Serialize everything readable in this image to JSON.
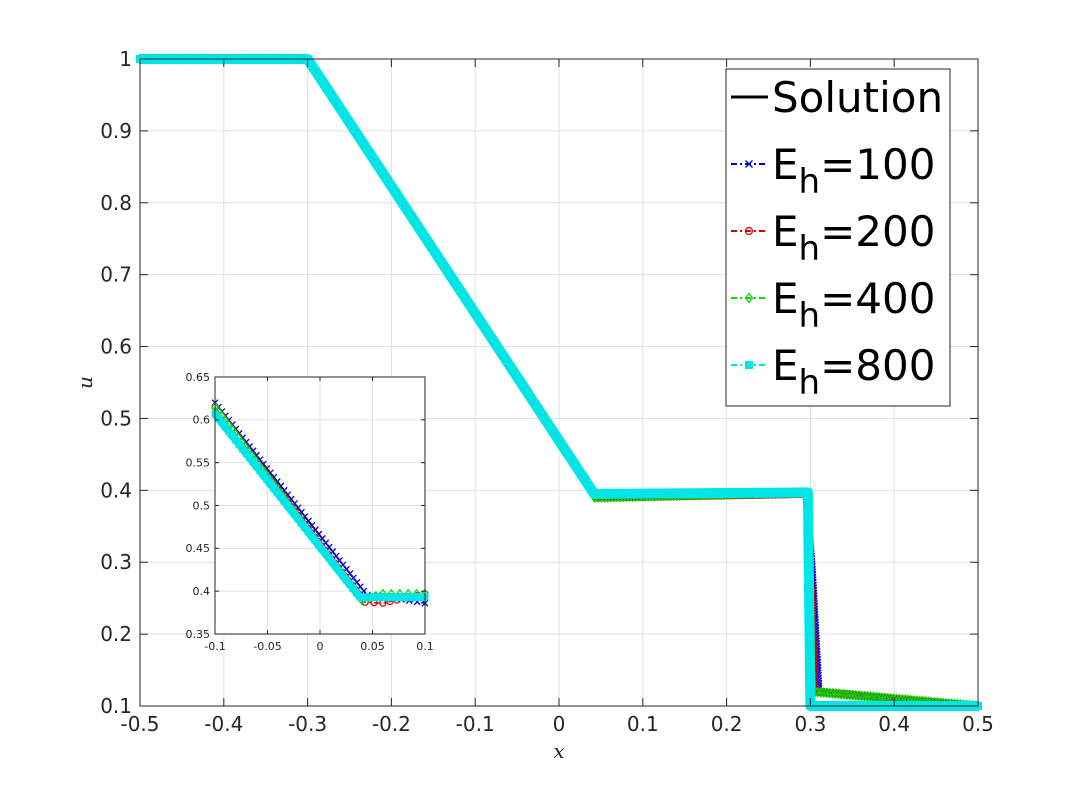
{
  "chart_data": [
    {
      "type": "line",
      "title": "",
      "xlabel": "x",
      "ylabel": "u",
      "xlim": [
        -0.5,
        0.5
      ],
      "ylim": [
        0.1,
        1.0
      ],
      "xticks": [
        -0.5,
        -0.4,
        -0.3,
        -0.2,
        -0.1,
        0,
        0.1,
        0.2,
        0.3,
        0.4,
        0.5
      ],
      "xtick_labels": [
        "-0.5",
        "-0.4",
        "-0.3",
        "-0.2",
        "-0.1",
        "0",
        "0.1",
        "0.2",
        "0.3",
        "0.4",
        "0.5"
      ],
      "yticks": [
        0.1,
        0.2,
        0.3,
        0.4,
        0.5,
        0.6,
        0.7,
        0.8,
        0.9,
        1.0
      ],
      "ytick_labels": [
        "0.1",
        "0.2",
        "0.3",
        "0.4",
        "0.5",
        "0.6",
        "0.7",
        "0.8",
        "0.9",
        "1"
      ],
      "grid": true,
      "legend_position": "top-right",
      "series": [
        {
          "name": "Solution",
          "color": "#000000",
          "marker": "none",
          "line": "solid",
          "x": [
            -0.5,
            -0.3,
            0.045,
            0.298,
            0.298,
            0.5
          ],
          "y": [
            1.0,
            1.0,
            0.395,
            0.395,
            0.1,
            0.1
          ]
        },
        {
          "name": "E_h=100",
          "color": "#0000cc",
          "marker": "x",
          "line": "dashdot",
          "x": [
            -0.5,
            -0.3,
            0.045,
            0.295,
            0.302,
            0.31,
            0.5
          ],
          "y": [
            1.0,
            1.0,
            0.39,
            0.395,
            0.29,
            0.12,
            0.1
          ]
        },
        {
          "name": "E_h=200",
          "color": "#dd0000",
          "marker": "o",
          "line": "dashdot",
          "x": [
            -0.5,
            -0.3,
            0.044,
            0.296,
            0.305,
            0.5
          ],
          "y": [
            1.0,
            1.0,
            0.39,
            0.395,
            0.12,
            0.1
          ]
        },
        {
          "name": "E_h=400",
          "color": "#00dd00",
          "marker": "diamond",
          "line": "dashdot",
          "x": [
            -0.5,
            -0.3,
            0.043,
            0.297,
            0.302,
            0.5
          ],
          "y": [
            1.0,
            1.0,
            0.39,
            0.397,
            0.12,
            0.1
          ]
        },
        {
          "name": "E_h=800",
          "color": "#00e5e5",
          "marker": "square",
          "line": "dashdot",
          "x": [
            -0.5,
            -0.3,
            0.042,
            0.297,
            0.3,
            0.5
          ],
          "y": [
            1.0,
            1.0,
            0.395,
            0.397,
            0.1,
            0.1
          ]
        }
      ]
    },
    {
      "type": "line",
      "title": "",
      "xlabel": "",
      "ylabel": "",
      "xlim": [
        -0.1,
        0.1
      ],
      "ylim": [
        0.35,
        0.65
      ],
      "xticks": [
        -0.1,
        -0.05,
        0,
        0.05,
        0.1
      ],
      "xtick_labels": [
        "-0.1",
        "-0.05",
        "0",
        "0.05",
        "0.1"
      ],
      "yticks": [
        0.35,
        0.4,
        0.45,
        0.5,
        0.55,
        0.6,
        0.65
      ],
      "ytick_labels": [
        "0.35",
        "0.4",
        "0.45",
        "0.5",
        "0.55",
        "0.6",
        "0.65"
      ],
      "grid": true,
      "series": [
        {
          "name": "E_h=100",
          "color": "#0000cc",
          "marker": "x",
          "x": [
            -0.1,
            0.045,
            0.055,
            0.1
          ],
          "y": [
            0.62,
            0.395,
            0.395,
            0.386
          ]
        },
        {
          "name": "E_h=200",
          "color": "#dd0000",
          "marker": "o",
          "x": [
            -0.1,
            0.043,
            0.06,
            0.1
          ],
          "y": [
            0.615,
            0.387,
            0.386,
            0.397
          ]
        },
        {
          "name": "E_h=400",
          "color": "#00dd00",
          "marker": "diamond",
          "x": [
            -0.1,
            0.04,
            0.06,
            0.1
          ],
          "y": [
            0.615,
            0.389,
            0.397,
            0.397
          ]
        },
        {
          "name": "E_h=800",
          "color": "#00e5e5",
          "marker": "square",
          "x": [
            -0.1,
            0.038,
            0.1
          ],
          "y": [
            0.607,
            0.393,
            0.393
          ]
        }
      ]
    }
  ],
  "legend": {
    "items": [
      {
        "prefix": "Solution",
        "sub": "",
        "value": ""
      },
      {
        "prefix": "E",
        "sub": "h",
        "value": "=100"
      },
      {
        "prefix": "E",
        "sub": "h",
        "value": "=200"
      },
      {
        "prefix": "E",
        "sub": "h",
        "value": "=400"
      },
      {
        "prefix": "E",
        "sub": "h",
        "value": "=800"
      }
    ]
  }
}
